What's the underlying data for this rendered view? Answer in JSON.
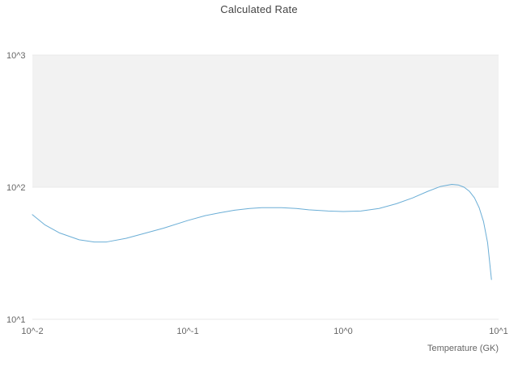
{
  "title": "Calculated Rate",
  "chart_data": {
    "type": "line",
    "title": "Calculated Rate",
    "xlabel": "Temperature (GK)",
    "ylabel": "",
    "x_scale": "log",
    "y_scale": "log",
    "xlim": [
      0.01,
      10
    ],
    "ylim": [
      10,
      1000
    ],
    "x_tick_values": [
      0.01,
      0.1,
      1,
      10
    ],
    "x_tick_labels": [
      "10^-2",
      "10^-1",
      "10^0",
      "10^1"
    ],
    "y_tick_values": [
      10,
      100,
      1000
    ],
    "y_tick_labels": [
      "10^1",
      "10^2",
      "10^3"
    ],
    "grid": true,
    "legend": "none",
    "shaded_band": {
      "from": 100,
      "to": 1000,
      "color": "#f2f2f2"
    },
    "line_color": "#6baed6",
    "gridline_color": "#e8e8e8",
    "series": [
      {
        "name": "Calculated Rate",
        "x": [
          0.01,
          0.012,
          0.015,
          0.02,
          0.025,
          0.03,
          0.04,
          0.05,
          0.07,
          0.1,
          0.13,
          0.16,
          0.2,
          0.25,
          0.3,
          0.4,
          0.5,
          0.6,
          0.8,
          1.0,
          1.3,
          1.7,
          2.2,
          2.8,
          3.5,
          4.2,
          5.0,
          5.5,
          6.0,
          6.5,
          7.0,
          7.5,
          8.0,
          8.5,
          9.0
        ],
        "y": [
          62,
          52,
          45,
          40,
          38.5,
          38.5,
          41,
          44,
          49,
          56,
          61,
          64,
          67,
          69,
          70,
          70,
          69,
          67.5,
          66,
          65.5,
          66,
          69,
          75,
          83,
          93,
          101,
          105,
          104,
          100,
          93,
          83,
          70,
          55,
          38,
          20
        ]
      }
    ]
  }
}
